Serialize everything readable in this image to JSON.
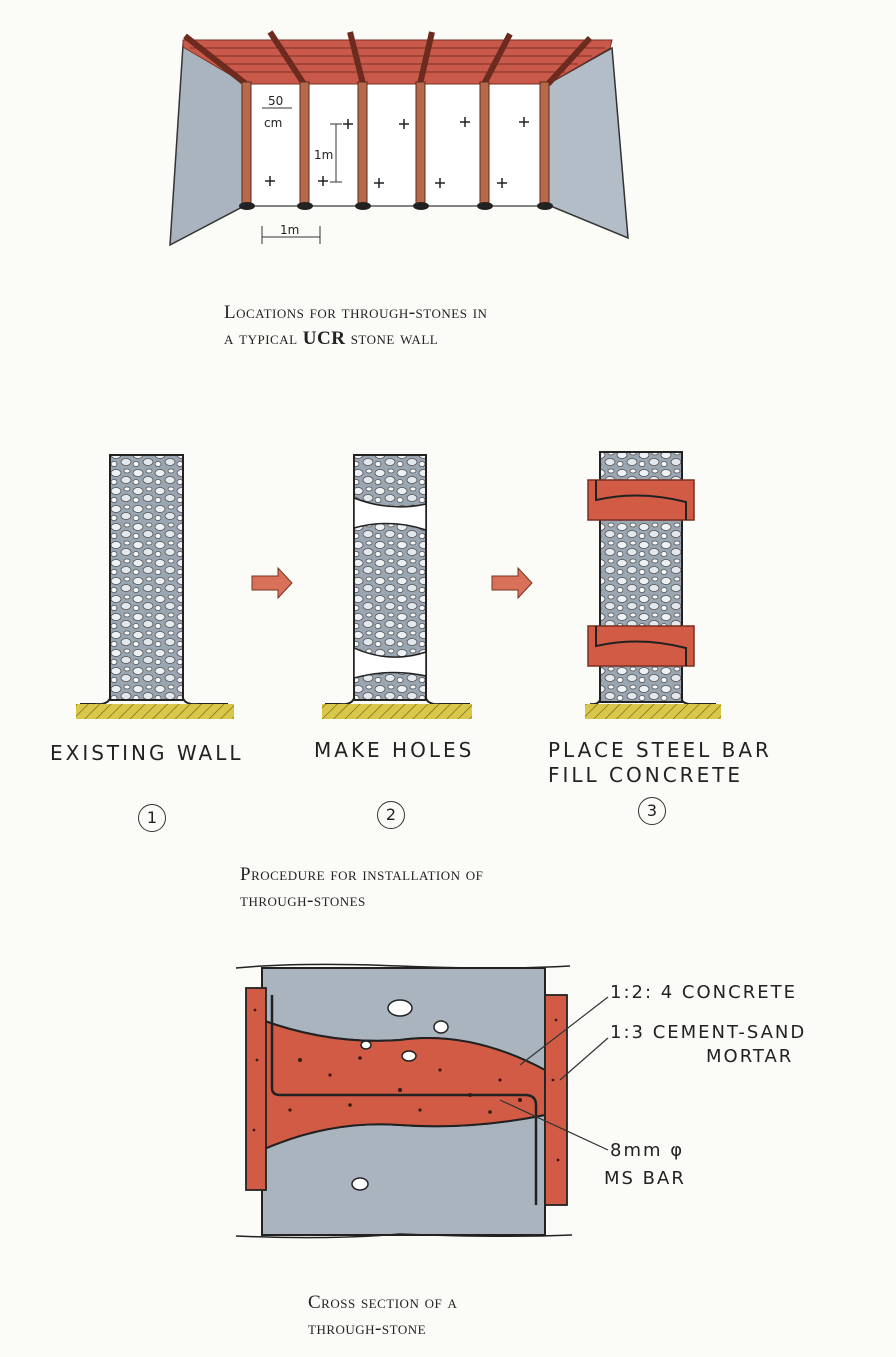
{
  "top": {
    "dim_50cm_a": "50",
    "dim_50cm_b": "cm",
    "dim_1m_vertical": "1m",
    "dim_1m_horizontal": "1m",
    "caption_line1": "Locations for through-stones in",
    "caption_line2_pre": "a typical ",
    "caption_line2_bold": "UCR",
    "caption_line2_post": " stone wall"
  },
  "procedure": {
    "steps": [
      {
        "label": "EXISTING WALL",
        "number": "1"
      },
      {
        "label": "MAKE HOLES",
        "number": "2"
      },
      {
        "label": "PLACE STEEL BAR",
        "label2": "FILL CONCRETE",
        "number": "3"
      }
    ],
    "caption_line1": "Procedure for installation of",
    "caption_line2": "through-stones"
  },
  "section": {
    "label_concrete": "1:2: 4  CONCRETE",
    "label_mortar_1": "1:3  CEMENT-SAND",
    "label_mortar_2": "MORTAR",
    "label_bar_1": "8mm φ",
    "label_bar_2": "MS BAR",
    "caption_line1": "Cross section of a",
    "caption_line2": "through-stone"
  },
  "colors": {
    "wall_grey": "#a9b4bf",
    "wood_red": "#c9594a",
    "concrete_red": "#d25b45",
    "ground_yellow": "#d9c74a"
  }
}
